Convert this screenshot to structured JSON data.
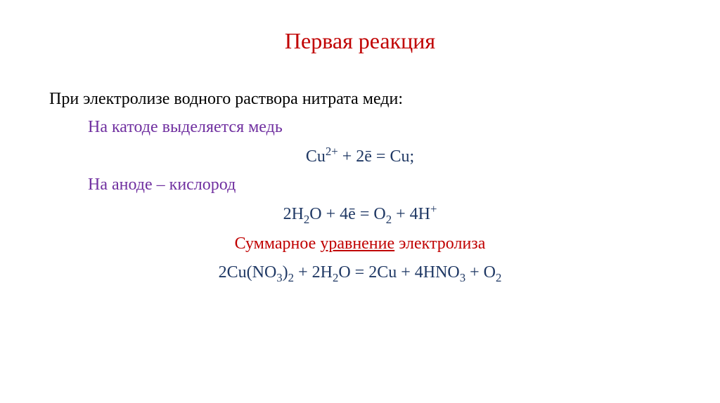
{
  "title": {
    "text": "Первая реакция",
    "color": "#c00000",
    "fontsize": 32
  },
  "body": {
    "color": "#000000",
    "fontsize": 24,
    "line1": "При электролизе водного раствора нитрата меди:",
    "line2": {
      "text": "На катоде выделяется медь",
      "color": "#7030a0"
    },
    "eq1": {
      "pre": "Cu",
      "sup1": "2+",
      "mid": " + 2ē = Cu;",
      "color": "#1f3864"
    },
    "line3": {
      "text": "На аноде – кислород",
      "color": "#7030a0"
    },
    "eq2": {
      "t1": "2H",
      "s1": "2",
      "t2": "O + 4ē  =  O",
      "s2": "2",
      "t3": "  + 4H",
      "s3": "+",
      "color": "#1f3864"
    },
    "line4": {
      "t1": "Суммарное ",
      "t2": "уравнение",
      "t3": " электролиза",
      "color": "#c00000"
    },
    "eq3": {
      "t1": "2Cu(NO",
      "s1": "3",
      "t2": ")",
      "s2": "2",
      "t3": " + 2H",
      "s3": "2",
      "t4": "O = 2Cu + 4HNO",
      "s4": "3",
      "t5": " + O",
      "s5": "2",
      "color": "#1f3864"
    }
  },
  "background_color": "#ffffff"
}
